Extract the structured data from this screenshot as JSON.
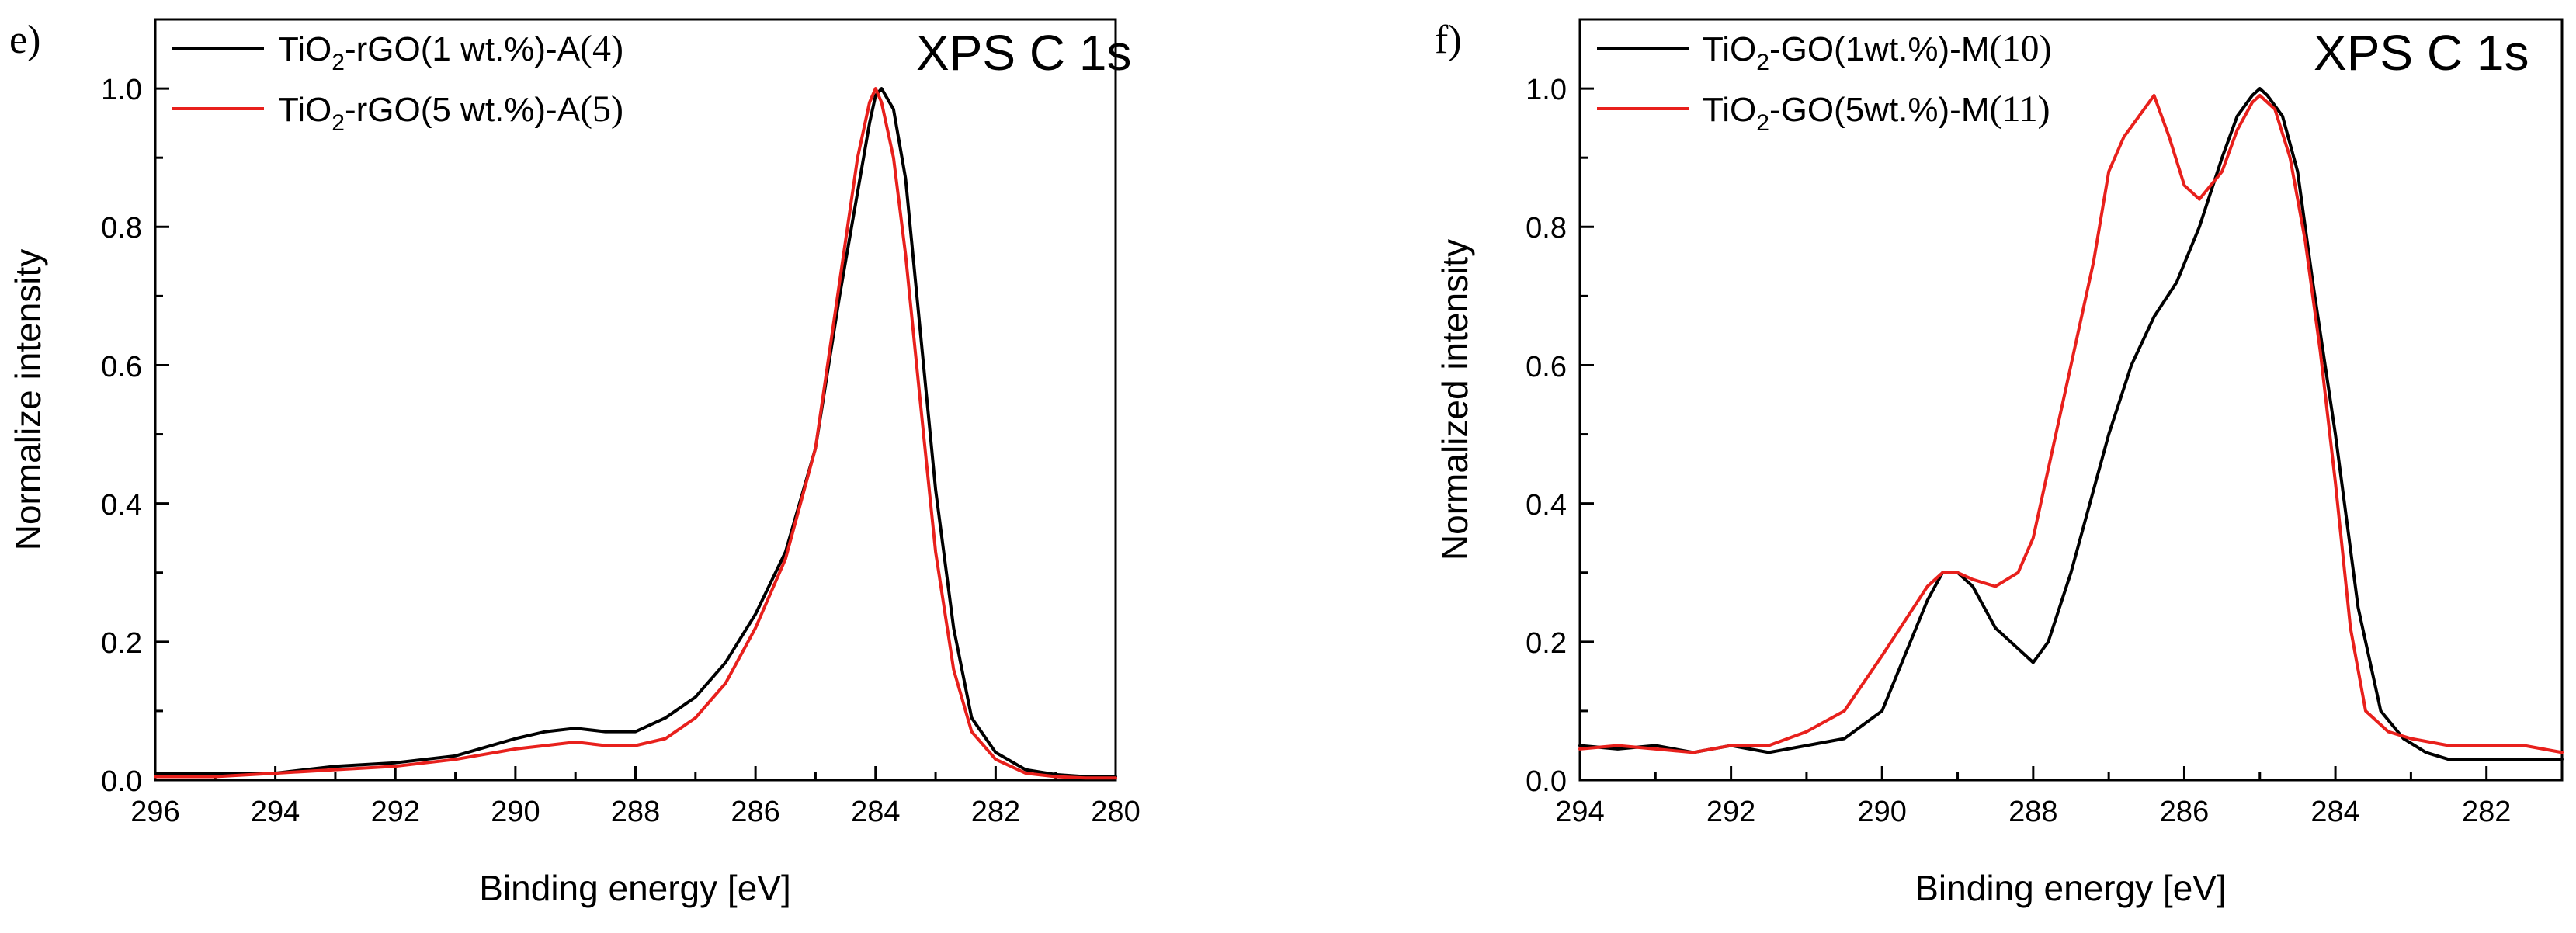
{
  "chart_data": [
    {
      "type": "line",
      "panel_label": "e)",
      "title": "XPS C 1s",
      "xlabel": "Binding energy [eV]",
      "ylabel": "Normalize intensity",
      "xlim": [
        296,
        280
      ],
      "ylim": [
        0,
        1.1
      ],
      "x_ticks": [
        "296",
        "294",
        "292",
        "290",
        "288",
        "286",
        "284",
        "282",
        "280"
      ],
      "y_ticks": [
        "0.0",
        "0.2",
        "0.4",
        "0.6",
        "0.8",
        "1.0"
      ],
      "legend_position": "top-left",
      "series": [
        {
          "name_main": "TiO",
          "name_sub": "2",
          "name_rest": "-rGO(1 wt.%)-A",
          "name_num": "(4)",
          "color": "#000000",
          "x": [
            296,
            295,
            294,
            293,
            292,
            291,
            290,
            289.5,
            289,
            288.5,
            288,
            287.5,
            287,
            286.5,
            286,
            285.5,
            285,
            284.6,
            284.3,
            284.1,
            284.0,
            283.9,
            283.7,
            283.5,
            283.2,
            283.0,
            282.7,
            282.4,
            282.0,
            281.5,
            281,
            280.5,
            280
          ],
          "y": [
            0.01,
            0.01,
            0.01,
            0.02,
            0.025,
            0.035,
            0.06,
            0.07,
            0.075,
            0.07,
            0.07,
            0.09,
            0.12,
            0.17,
            0.24,
            0.33,
            0.48,
            0.7,
            0.85,
            0.95,
            0.99,
            1.0,
            0.97,
            0.87,
            0.6,
            0.42,
            0.22,
            0.09,
            0.04,
            0.015,
            0.008,
            0.005,
            0.005
          ]
        },
        {
          "name_main": "TiO",
          "name_sub": "2",
          "name_rest": "-rGO(5 wt.%)-A",
          "name_num": "(5)",
          "color": "#e8201c",
          "x": [
            296,
            295,
            294,
            293,
            292,
            291,
            290,
            289.5,
            289,
            288.5,
            288,
            287.5,
            287,
            286.5,
            286,
            285.5,
            285,
            284.6,
            284.3,
            284.1,
            284.0,
            283.9,
            283.7,
            283.5,
            283.2,
            283.0,
            282.7,
            282.4,
            282.0,
            281.5,
            281,
            280.5,
            280
          ],
          "y": [
            0.005,
            0.005,
            0.01,
            0.015,
            0.02,
            0.03,
            0.045,
            0.05,
            0.055,
            0.05,
            0.05,
            0.06,
            0.09,
            0.14,
            0.22,
            0.32,
            0.48,
            0.72,
            0.9,
            0.98,
            1.0,
            0.98,
            0.9,
            0.76,
            0.5,
            0.33,
            0.16,
            0.07,
            0.03,
            0.01,
            0.005,
            0.003,
            0.003
          ]
        }
      ]
    },
    {
      "type": "line",
      "panel_label": "f)",
      "title": "XPS C 1s",
      "xlabel": "Binding energy [eV]",
      "ylabel": "Normalized intensity",
      "xlim": [
        294,
        281
      ],
      "ylim": [
        0,
        1.1
      ],
      "x_ticks": [
        "294",
        "292",
        "290",
        "288",
        "286",
        "284",
        "282"
      ],
      "y_ticks": [
        "0.0",
        "0.2",
        "0.4",
        "0.6",
        "0.8",
        "1.0"
      ],
      "legend_position": "top-left",
      "series": [
        {
          "name_main": "TiO",
          "name_sub": "2",
          "name_rest": "-GO(1wt.%)-M",
          "name_num": "(10)",
          "color": "#000000",
          "x": [
            294,
            293.5,
            293,
            292.5,
            292,
            291.5,
            291,
            290.5,
            290,
            289.7,
            289.4,
            289.2,
            289,
            288.8,
            288.5,
            288.2,
            288,
            287.8,
            287.5,
            287.2,
            287,
            286.7,
            286.4,
            286.1,
            285.8,
            285.5,
            285.3,
            285.1,
            285.0,
            284.9,
            284.7,
            284.5,
            284.3,
            284.0,
            283.7,
            283.4,
            283.1,
            282.8,
            282.5,
            282.0,
            281.5,
            281
          ],
          "y": [
            0.05,
            0.045,
            0.05,
            0.04,
            0.05,
            0.04,
            0.05,
            0.06,
            0.1,
            0.18,
            0.26,
            0.3,
            0.3,
            0.28,
            0.22,
            0.19,
            0.17,
            0.2,
            0.3,
            0.42,
            0.5,
            0.6,
            0.67,
            0.72,
            0.8,
            0.9,
            0.96,
            0.99,
            1.0,
            0.99,
            0.96,
            0.88,
            0.72,
            0.5,
            0.25,
            0.1,
            0.06,
            0.04,
            0.03,
            0.03,
            0.03,
            0.03
          ]
        },
        {
          "name_main": "TiO",
          "name_sub": "2",
          "name_rest": "-GO(5wt.%)-M",
          "name_num": "(11)",
          "color": "#e8201c",
          "x": [
            294,
            293.5,
            293,
            292.5,
            292,
            291.5,
            291,
            290.5,
            290,
            289.7,
            289.4,
            289.2,
            289,
            288.8,
            288.5,
            288.2,
            288,
            287.8,
            287.5,
            287.2,
            287,
            286.8,
            286.6,
            286.4,
            286.2,
            286.0,
            285.8,
            285.5,
            285.3,
            285.1,
            285.0,
            284.8,
            284.6,
            284.4,
            284.2,
            284.0,
            283.8,
            283.6,
            283.3,
            283.0,
            282.5,
            282.0,
            281.5,
            281
          ],
          "y": [
            0.045,
            0.05,
            0.045,
            0.04,
            0.05,
            0.05,
            0.07,
            0.1,
            0.18,
            0.23,
            0.28,
            0.3,
            0.3,
            0.29,
            0.28,
            0.3,
            0.35,
            0.45,
            0.6,
            0.75,
            0.88,
            0.93,
            0.96,
            0.99,
            0.93,
            0.86,
            0.84,
            0.88,
            0.94,
            0.98,
            0.99,
            0.97,
            0.9,
            0.78,
            0.62,
            0.43,
            0.22,
            0.1,
            0.07,
            0.06,
            0.05,
            0.05,
            0.05,
            0.04
          ]
        }
      ]
    }
  ]
}
